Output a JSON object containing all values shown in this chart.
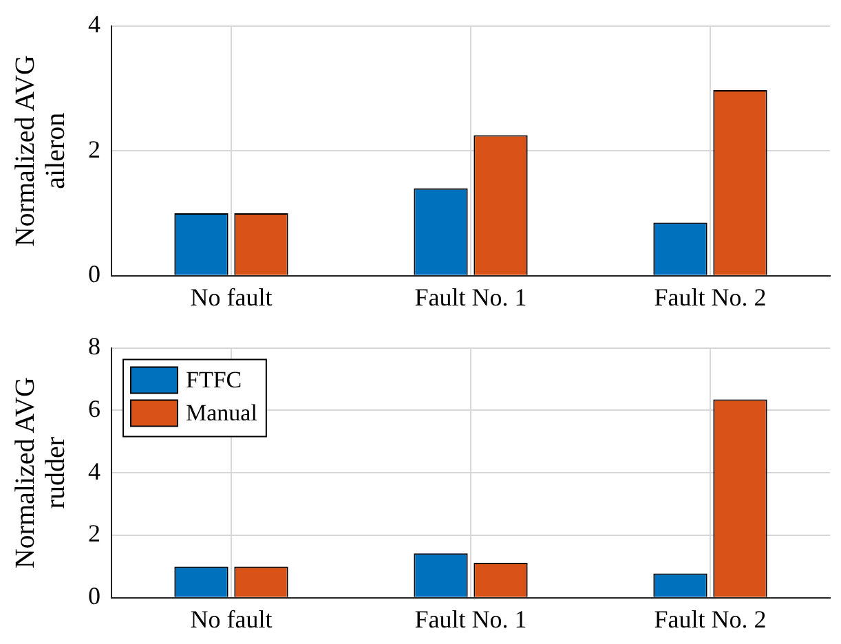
{
  "chart_data": [
    {
      "type": "bar",
      "ylabel": "Normalized AVG\naileron",
      "categories": [
        "No fault",
        "Fault No. 1",
        "Fault No. 2"
      ],
      "ylim": [
        0,
        4
      ],
      "yticks": [
        0,
        2,
        4
      ],
      "grid": true,
      "legend": false,
      "series": [
        {
          "color": "#0072bd",
          "values": [
            1,
            1.4,
            0.85
          ]
        },
        {
          "color": "#d95319",
          "values": [
            1,
            2.25,
            2.97
          ]
        }
      ]
    },
    {
      "type": "bar",
      "ylabel": "Normalized AVG\nrudder",
      "categories": [
        "No fault",
        "Fault No. 1",
        "Fault No. 2"
      ],
      "ylim": [
        0,
        8
      ],
      "yticks": [
        0,
        2,
        4,
        6,
        8
      ],
      "grid": true,
      "legend": "top left",
      "series": [
        {
          "name": "FTFC",
          "color": "#0072bd",
          "values": [
            1,
            1.42,
            0.78
          ]
        },
        {
          "name": "Manual",
          "color": "#d95319",
          "values": [
            1,
            1.12,
            6.35
          ]
        }
      ]
    }
  ]
}
